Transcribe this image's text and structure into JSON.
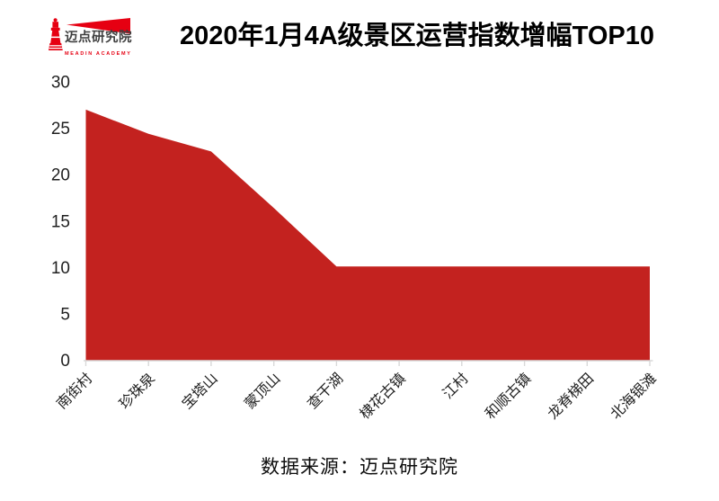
{
  "header": {
    "logo": {
      "brand_cn": "迈点研究院",
      "brand_en": "MEADIN ACADEMY",
      "logo_color": "#e60012",
      "brand_text_color": "#3f3f3f"
    },
    "title": "2020年1月4A级景区运营指数增幅TOP10"
  },
  "chart_data": {
    "type": "area",
    "title": "2020年1月4A级景区运营指数增幅TOP10",
    "categories": [
      "南街村",
      "珍珠泉",
      "宝塔山",
      "蒙顶山",
      "查干湖",
      "棣花古镇",
      "江村",
      "和顺古镇",
      "龙脊梯田",
      "北海银滩"
    ],
    "values": [
      27,
      24.4,
      22.5,
      16.4,
      10.1,
      10.1,
      10.1,
      10.1,
      10.1,
      10.1
    ],
    "xlabel": "",
    "ylabel": "",
    "ylim": [
      0,
      30
    ],
    "yticks": [
      0,
      5,
      10,
      15,
      20,
      25,
      30
    ],
    "grid": false,
    "legend": "none",
    "x_tick_rotation_deg": 45,
    "area_color": "#c3221f",
    "axis_color": "#d9d9d9",
    "tick_label_color": "#1f1f1f"
  },
  "footer": {
    "source": "数据来源：迈点研究院"
  }
}
